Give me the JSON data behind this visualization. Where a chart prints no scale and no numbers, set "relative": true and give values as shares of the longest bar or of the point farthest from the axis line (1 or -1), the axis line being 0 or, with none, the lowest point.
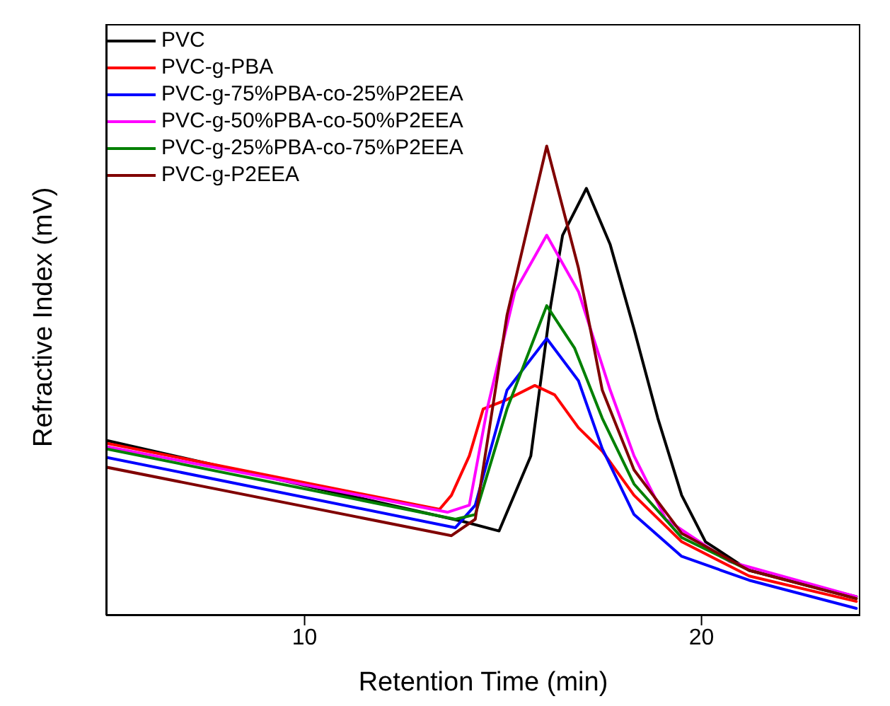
{
  "chart_data": {
    "type": "line",
    "xlabel": "Retention Time (min)",
    "ylabel": "Refractive Index (mV)",
    "relative": true,
    "xlim": [
      5,
      24
    ],
    "xticks": [
      10,
      20
    ],
    "grid": false,
    "legend": "top left",
    "marker": "none",
    "line_style": "solid",
    "series": [
      {
        "name": "PVC",
        "color": "#000000",
        "x": [
          5,
          14,
          14.9,
          15.7,
          16.2,
          16.5,
          17.1,
          17.7,
          18.3,
          18.9,
          19.5,
          20.1,
          21.2,
          23.9
        ],
        "values": [
          0.373,
          0.2,
          0.18,
          0.34,
          0.66,
          0.81,
          0.91,
          0.79,
          0.61,
          0.42,
          0.256,
          0.157,
          0.096,
          0.04
        ]
      },
      {
        "name": "PVC-g-PBA",
        "color": "#ff0000",
        "x": [
          5,
          13.4,
          13.7,
          14.15,
          14.5,
          15.1,
          15.8,
          16.3,
          16.9,
          17.5,
          18.3,
          19.5,
          21.2,
          23.9
        ],
        "values": [
          0.367,
          0.226,
          0.256,
          0.34,
          0.44,
          0.46,
          0.49,
          0.47,
          0.4,
          0.35,
          0.256,
          0.157,
          0.084,
          0.03
        ]
      },
      {
        "name": "PVC-g-75%PBA-co-25%P2EEA",
        "color": "#0000ff",
        "x": [
          5,
          13.8,
          14.3,
          15.1,
          16.1,
          16.9,
          17.5,
          18.3,
          19.5,
          21.2,
          23.9
        ],
        "values": [
          0.337,
          0.187,
          0.235,
          0.48,
          0.59,
          0.5,
          0.355,
          0.215,
          0.126,
          0.075,
          0.015
        ]
      },
      {
        "name": "PVC-g-50%PBA-co-50%P2EEA",
        "color": "#ff00ff",
        "x": [
          5,
          13.6,
          14.15,
          14.6,
          15.3,
          16.1,
          16.9,
          17.7,
          18.3,
          19.1,
          20.7,
          23.9
        ],
        "values": [
          0.36,
          0.22,
          0.235,
          0.44,
          0.69,
          0.81,
          0.69,
          0.48,
          0.34,
          0.205,
          0.115,
          0.04
        ]
      },
      {
        "name": "PVC-g-25%PBA-co-75%P2EEA",
        "color": "#008000",
        "x": [
          5,
          13.8,
          14.3,
          15.1,
          16.1,
          16.8,
          17.5,
          18.3,
          19.5,
          21.2,
          23.9
        ],
        "values": [
          0.355,
          0.205,
          0.215,
          0.44,
          0.66,
          0.57,
          0.42,
          0.28,
          0.166,
          0.096,
          0.036
        ]
      },
      {
        "name": "PVC-g-P2EEA",
        "color": "#800000",
        "x": [
          5,
          13.7,
          14.3,
          15.1,
          16.1,
          16.9,
          17.5,
          18.3,
          19.5,
          21.2,
          23.9
        ],
        "values": [
          0.316,
          0.17,
          0.205,
          0.64,
          1.0,
          0.74,
          0.48,
          0.31,
          0.175,
          0.096,
          0.036
        ]
      }
    ]
  }
}
